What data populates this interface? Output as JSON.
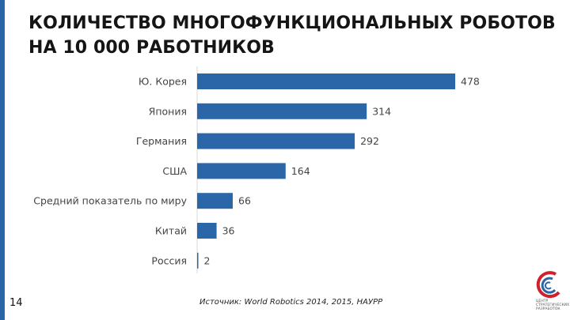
{
  "slide": {
    "title_line1": "КОЛИЧЕСТВО МНОГОФУНКЦИОНАЛЬНЫХ РОБОТОВ",
    "title_line2": "НА 10 000 РАБОТНИКОВ",
    "page_number": "14",
    "source": "Источник:  World Robotics 2014, 2015, НАУРР",
    "accent_color": "#2a66a8",
    "logo": {
      "icon": "center-logo-icon",
      "text_lines": [
        "ЦЕНТР",
        "СТРАТЕГИЧЕСКИХ",
        "РАЗРАБОТОК"
      ],
      "colors": [
        "#d0202a",
        "#2a66a8"
      ]
    }
  },
  "chart_data": {
    "type": "bar",
    "orientation": "horizontal",
    "categories": [
      "Ю. Корея",
      "Япония",
      "Германия",
      "США",
      "Средний показатель по миру",
      "Китай",
      "Россия"
    ],
    "values": [
      478,
      314,
      292,
      164,
      66,
      36,
      2
    ],
    "data_labels": [
      "478",
      "314",
      "292",
      "164",
      "66",
      "36",
      "2"
    ],
    "bar_color": "#2a66a8",
    "xlim": [
      0,
      520
    ],
    "grid": false,
    "legend": "none"
  }
}
